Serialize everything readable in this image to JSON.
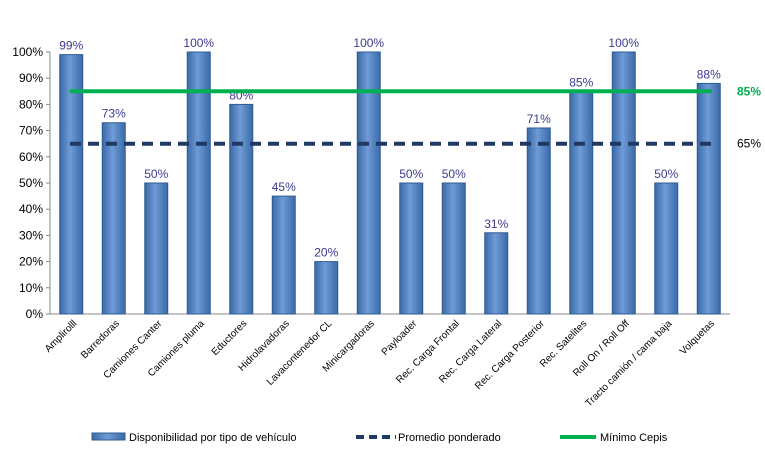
{
  "chart_data": {
    "type": "bar",
    "categories": [
      "Amplirolll",
      "Barredoras",
      "Camiones Canter",
      "Camiones pluma",
      "Eductores",
      "Hidrolavadoras",
      "Lavacontenedor CL",
      "Minicargadoras",
      "Payloader",
      "Rec. Carga Frontal",
      "Rec. Carga Lateral",
      "Rec. Carga Posterior",
      "Rec. Satelites",
      "Roll On / Roll Off",
      "Tracto camión / cama baja",
      "Volquetas"
    ],
    "series": [
      {
        "name": "Disponibilidad por tipo de vehículo",
        "values": [
          99,
          73,
          50,
          100,
          80,
          45,
          20,
          100,
          50,
          50,
          31,
          71,
          85,
          100,
          50,
          88
        ],
        "labels": [
          "99%",
          "73%",
          "50%",
          "100%",
          "80%",
          "45%",
          "20%",
          "100%",
          "50%",
          "50%",
          "31%",
          "71%",
          "85%",
          "100%",
          "50%",
          "88%"
        ],
        "color": "#4f81bd"
      }
    ],
    "reference_lines": [
      {
        "name": "Promedio ponderado",
        "value": 65,
        "label": "65%",
        "style": "dashed",
        "color": "#1f3864"
      },
      {
        "name": "Mínimo Cepis",
        "value": 85,
        "label": "85%",
        "style": "solid",
        "color": "#00b050"
      }
    ],
    "y_ticks": [
      "0%",
      "10%",
      "20%",
      "30%",
      "40%",
      "50%",
      "60%",
      "70%",
      "80%",
      "90%",
      "100%"
    ],
    "ylim": [
      0,
      100
    ],
    "grid": false,
    "legend": "bottom"
  }
}
